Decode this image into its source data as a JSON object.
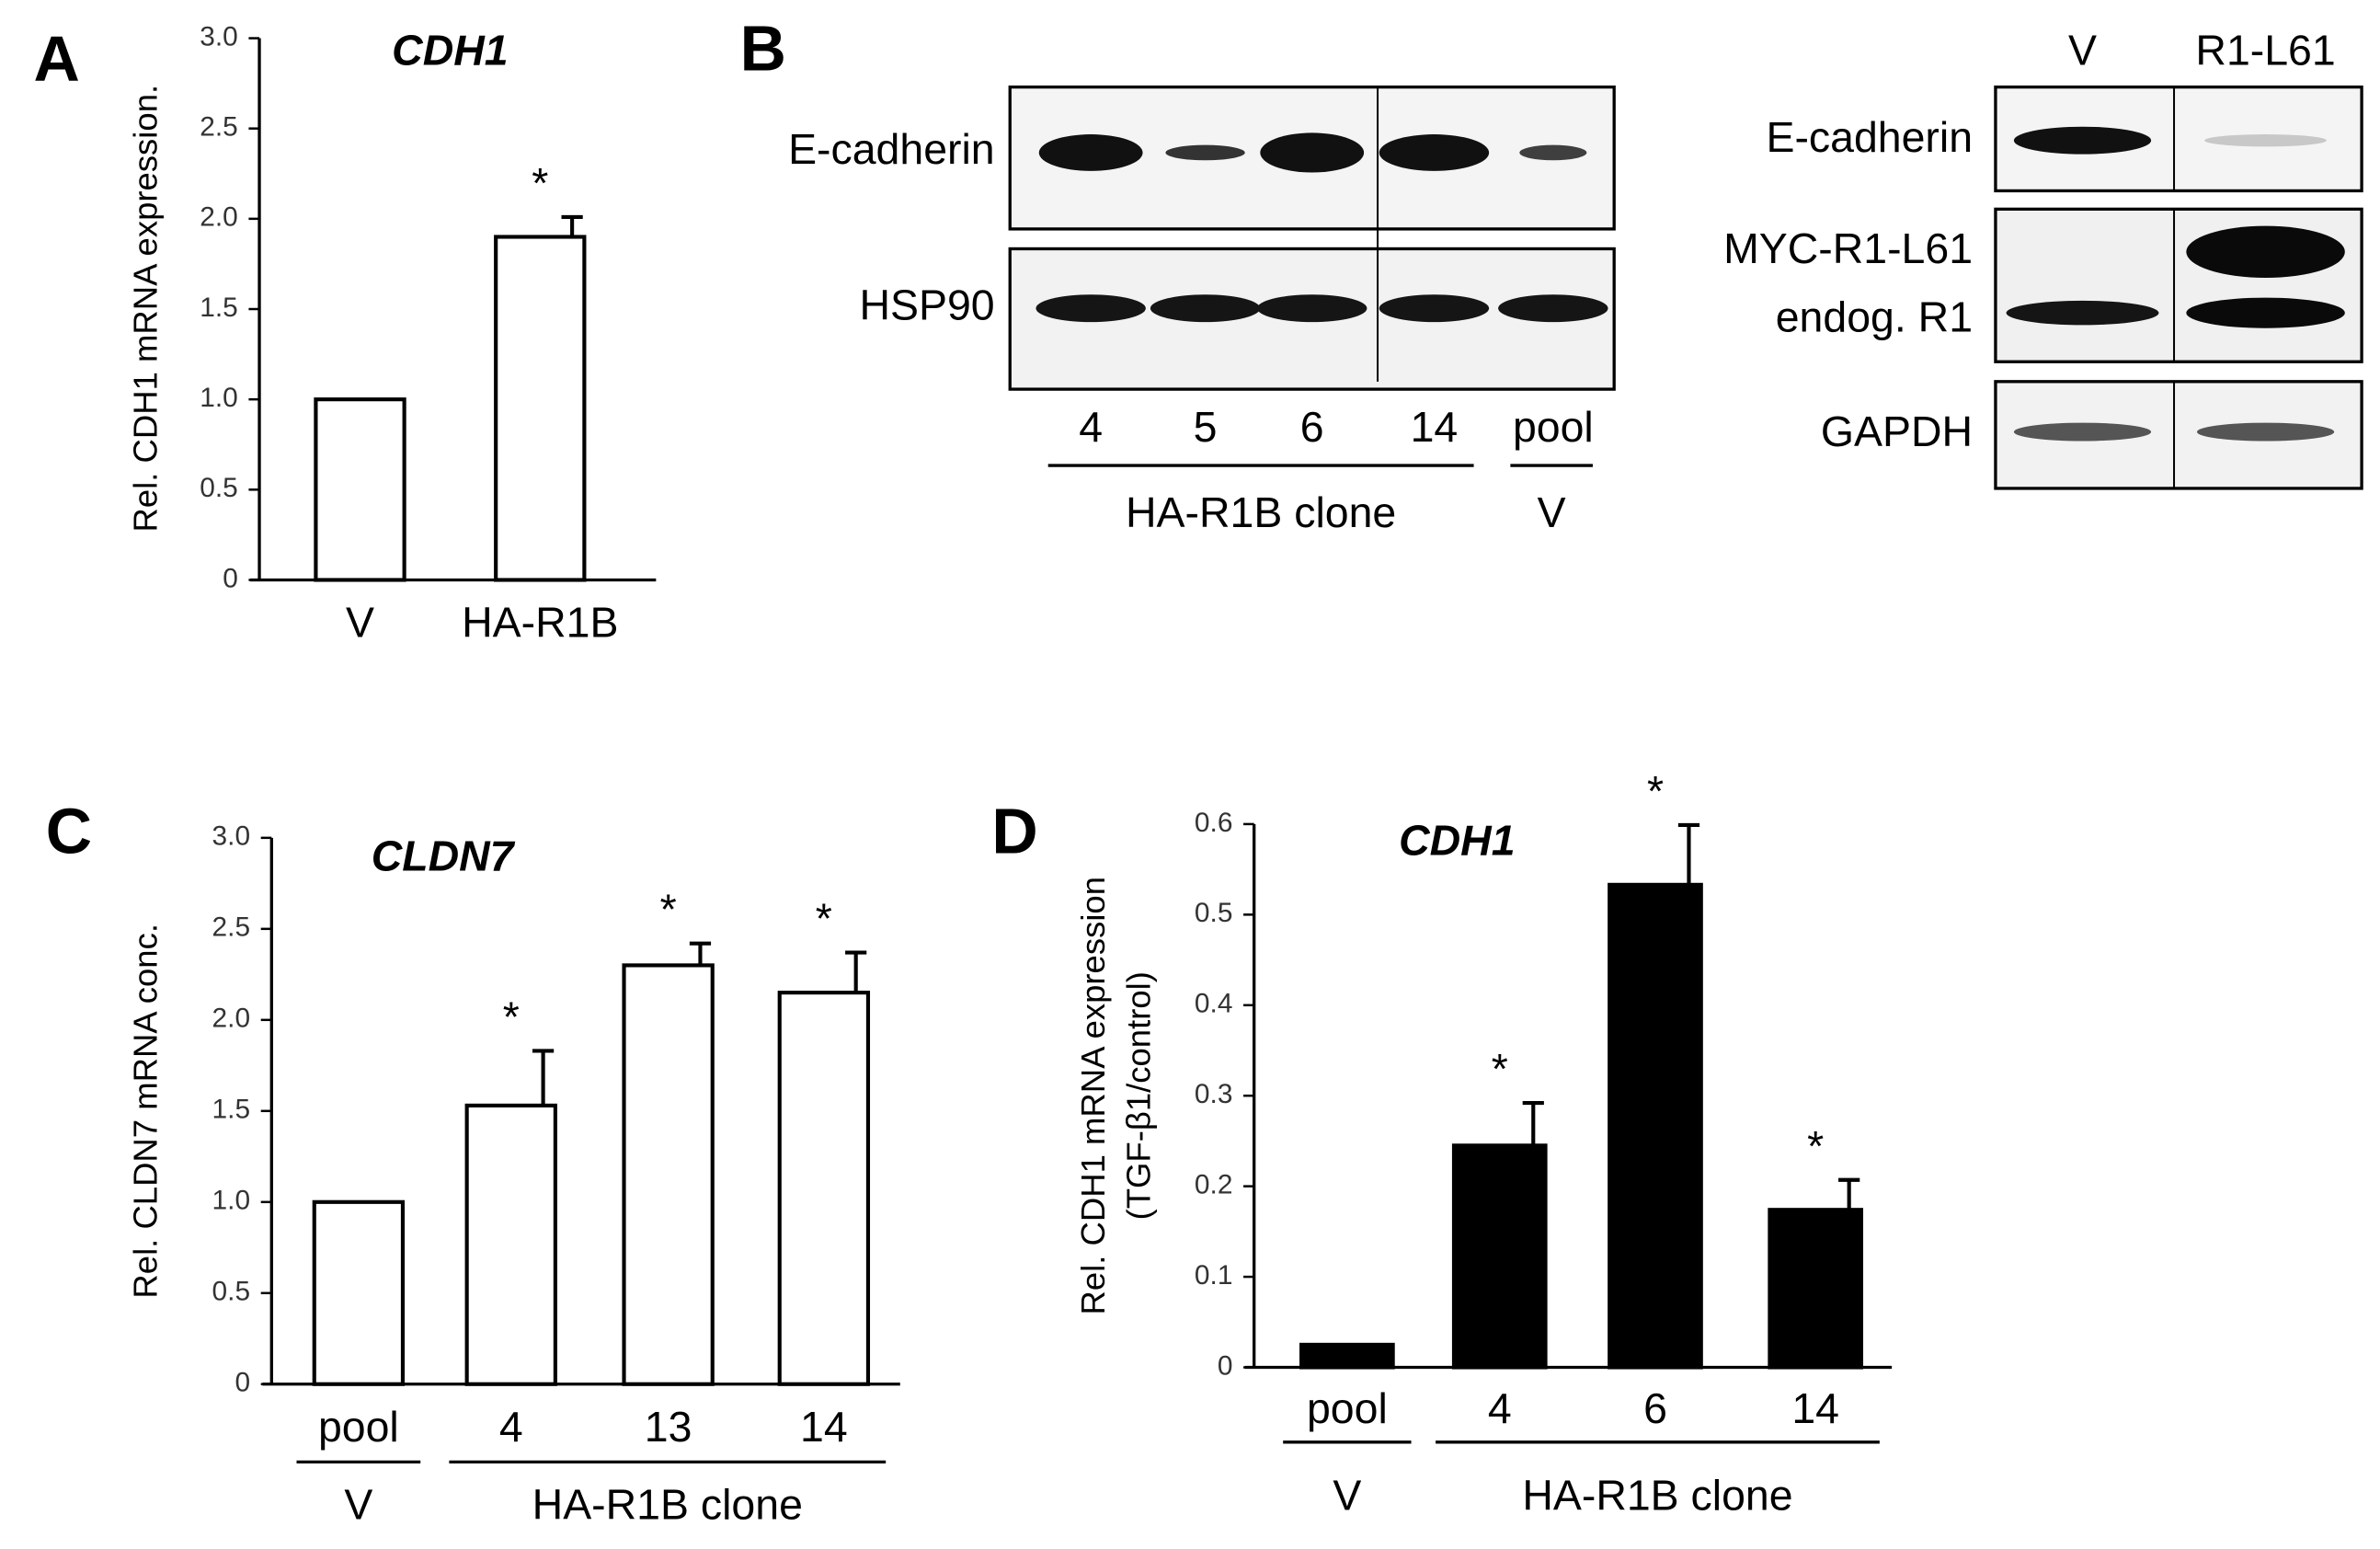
{
  "chart_data": [
    {
      "panel": "A",
      "type": "bar",
      "title": "CDH1",
      "y_label": [
        "Rel. CDH1 mRNA expression."
      ],
      "categories": [
        "V",
        "HA-R1B"
      ],
      "values": [
        1.0,
        1.9
      ],
      "errors": [
        null,
        0.11
      ],
      "annotations": [
        null,
        "*"
      ],
      "color": "#ffffff",
      "edge_color": "#000000",
      "ylim": [
        0,
        3
      ],
      "yticks": [
        0,
        {
          "value": 0.5,
          "label": "0.5"
        },
        {
          "value": 1,
          "label": "1.0"
        },
        {
          "value": 1.5,
          "label": "1.5"
        },
        {
          "value": 2,
          "label": "2.0"
        },
        {
          "value": 2.5,
          "label": "2.5"
        },
        {
          "value": 3,
          "label": "3.0"
        }
      ]
    },
    {
      "panel": "C",
      "type": "bar",
      "title": "CLDN7",
      "y_label": [
        "Rel. CLDN7 mRNA conc."
      ],
      "categories": [
        "pool",
        "4",
        "13",
        "14"
      ],
      "values": [
        1.0,
        1.53,
        2.3,
        2.15
      ],
      "errors": [
        null,
        0.3,
        0.12,
        0.22
      ],
      "annotations": [
        null,
        "*",
        "*",
        "*"
      ],
      "groups": [
        {
          "label": "V",
          "from": 0,
          "to": 0
        },
        {
          "label": "HA-R1B clone",
          "from": 1,
          "to": 3
        }
      ],
      "color": "#ffffff",
      "edge_color": "#000000",
      "ylim": [
        0,
        3
      ],
      "yticks": [
        0,
        {
          "value": 0.5,
          "label": "0.5"
        },
        {
          "value": 1,
          "label": "1.0"
        },
        {
          "value": 1.5,
          "label": "1.5"
        },
        {
          "value": 2,
          "label": "2.0"
        },
        {
          "value": 2.5,
          "label": "2.5"
        },
        {
          "value": 3,
          "label": "3.0"
        }
      ]
    },
    {
      "panel": "D",
      "type": "bar",
      "title": "CDH1",
      "y_label": [
        "Rel. CDH1 mRNA expression",
        "(TGF-β1/control)"
      ],
      "categories": [
        "pool",
        "4",
        "6",
        "14"
      ],
      "values": [
        0.025,
        0.245,
        0.533,
        0.174
      ],
      "errors": [
        null,
        0.047,
        0.066,
        0.033
      ],
      "annotations": [
        null,
        "*",
        "*",
        "*"
      ],
      "groups": [
        {
          "label": "V",
          "from": 0,
          "to": 0
        },
        {
          "label": "HA-R1B clone",
          "from": 1,
          "to": 3
        }
      ],
      "color": "#000000",
      "edge_color": "#000000",
      "ylim": [
        0,
        0.6
      ],
      "yticks": [
        0,
        0.1,
        0.2,
        0.3,
        0.4,
        0.5,
        0.6
      ]
    }
  ],
  "blots": {
    "panel": "B",
    "left": {
      "rows": [
        "E-cadherin",
        "HSP90"
      ],
      "lanes": [
        "4",
        "5",
        "6",
        "14",
        "pool"
      ],
      "groups": [
        {
          "label": "HA-R1B clone",
          "from": 0,
          "to": 3
        },
        {
          "label": "V",
          "from": 4,
          "to": 4
        }
      ]
    },
    "right": {
      "lanes": [
        "V",
        "R1-L61"
      ],
      "rows": [
        "E-cadherin",
        "MYC-R1-L61",
        "endog. R1",
        "GAPDH"
      ]
    }
  }
}
